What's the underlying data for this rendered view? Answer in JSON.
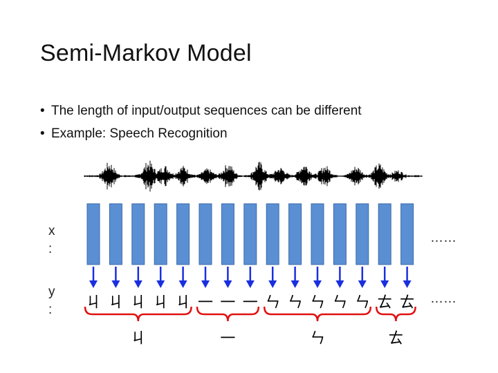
{
  "slide": {
    "title": "Semi-Markov Model",
    "bullets": [
      "The length of input/output sequences can be different",
      "Example: Speech Recognition"
    ]
  },
  "diagram": {
    "x_label": "x",
    "y_label": "y",
    "label_colon": ":",
    "input_ellipsis": "……",
    "output_ellipsis": "……",
    "outputs": [
      "ㄐ",
      "ㄐ",
      "ㄐ",
      "ㄐ",
      "ㄐ",
      "一",
      "一",
      "一",
      "ㄣ",
      "ㄣ",
      "ㄣ",
      "ㄣ",
      "ㄣ",
      "ㄊ",
      "ㄊ"
    ],
    "segments": [
      {
        "label": "ㄐ",
        "start": 0,
        "end": 4
      },
      {
        "label": "一",
        "start": 5,
        "end": 7
      },
      {
        "label": "ㄣ",
        "start": 8,
        "end": 12
      },
      {
        "label": "ㄊ",
        "start": 13,
        "end": 14
      }
    ],
    "colors": {
      "box_fill": "#5b8fd4",
      "box_stroke": "#3a6aa8",
      "arrow": "#1a2fe0",
      "brace": "#e01010",
      "waveform": "#000000"
    }
  }
}
